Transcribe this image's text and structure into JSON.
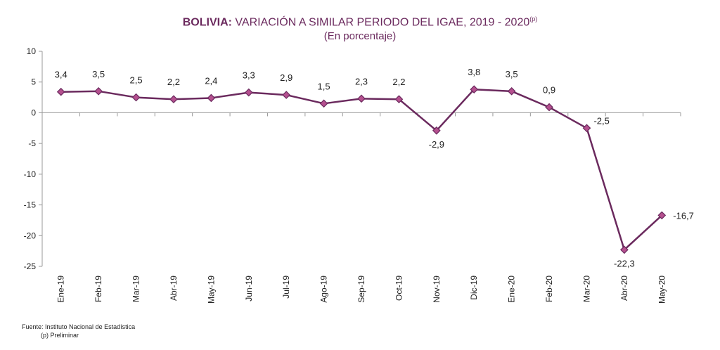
{
  "header": {
    "title_bold": "BOLIVIA:",
    "title_rest": "VARIACIÓN A SIMILAR PERIODO DEL IGAE, 2019 - 2020",
    "title_sup": "(p)",
    "subtitle": "(En porcentaje)"
  },
  "footer": {
    "source": "Fuente: Instituto Nacional de Estadística",
    "note": "(p) Preliminar"
  },
  "colors": {
    "line": "#6b2a5e",
    "marker": "#b5508f",
    "axis": "#999999"
  },
  "chart_data": {
    "type": "line",
    "title": "BOLIVIA: VARIACIÓN A SIMILAR PERIODO DEL IGAE, 2019 - 2020(p)",
    "subtitle": "(En porcentaje)",
    "categories": [
      "Ene-19",
      "Feb-19",
      "Mar-19",
      "Abr-19",
      "May-19",
      "Jun-19",
      "Jul-19",
      "Ago-19",
      "Sep-19",
      "Oct-19",
      "Nov-19",
      "Dic-19",
      "Ene-20",
      "Feb-20",
      "Mar-20",
      "Abr-20",
      "May-20"
    ],
    "values": [
      3.4,
      3.5,
      2.5,
      2.2,
      2.4,
      3.3,
      2.9,
      1.5,
      2.3,
      2.2,
      -2.9,
      3.8,
      3.5,
      0.9,
      -2.5,
      -22.3,
      -16.7
    ],
    "value_labels": [
      "3,4",
      "3,5",
      "2,5",
      "2,2",
      "2,4",
      "3,3",
      "2,9",
      "1,5",
      "2,3",
      "2,2",
      "-2,9",
      "3,8",
      "3,5",
      "0,9",
      "-2,5",
      "-22,3",
      "-16,7"
    ],
    "yticks": [
      10,
      5,
      0,
      -5,
      -10,
      -15,
      -20,
      -25
    ],
    "ylim": [
      -25,
      10
    ],
    "grid": false,
    "legend": "none"
  }
}
